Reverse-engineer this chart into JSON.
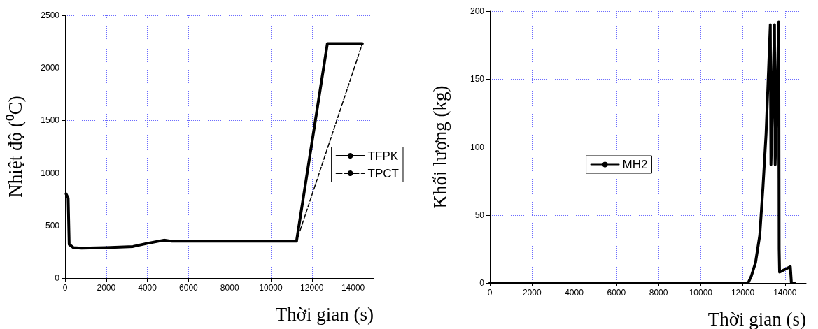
{
  "chart_data": [
    {
      "type": "line",
      "xlabel": "Thời gian (s)",
      "ylabel": "Nhiệt độ (⁰C)",
      "xlim": [
        0,
        15000
      ],
      "xticks": [
        0,
        2000,
        4000,
        6000,
        8000,
        10000,
        12000,
        14000
      ],
      "ylim": [
        0,
        2500
      ],
      "yticks": [
        0,
        500,
        1000,
        1500,
        2000,
        2500
      ],
      "grid": true,
      "legend": "right",
      "marker": "none",
      "series": [
        {
          "name": "TFPK",
          "color": "#000000",
          "line_style": "solid",
          "x": [
            50,
            150,
            200,
            400,
            800,
            2000,
            3300,
            4000,
            4800,
            5200,
            11250,
            12750,
            14450
          ],
          "values": [
            800,
            760,
            320,
            290,
            285,
            290,
            300,
            330,
            360,
            350,
            350,
            2230,
            2230
          ]
        },
        {
          "name": "TPCT",
          "color": "#000000",
          "line_style": "dashed",
          "x": [
            50,
            150,
            200,
            400,
            800,
            2000,
            3300,
            4000,
            4800,
            5200,
            11250,
            14450
          ],
          "values": [
            790,
            750,
            330,
            290,
            285,
            290,
            300,
            330,
            360,
            350,
            350,
            2230
          ]
        }
      ]
    },
    {
      "type": "line",
      "xlabel": "Thời gian (s)",
      "ylabel": "Khối lượng (kg)",
      "xlim": [
        0,
        15000
      ],
      "xticks": [
        0,
        2000,
        4000,
        6000,
        8000,
        10000,
        12000,
        14000
      ],
      "ylim": [
        0,
        200
      ],
      "yticks": [
        0,
        50,
        100,
        150,
        200
      ],
      "grid": true,
      "legend": "center",
      "marker": "none",
      "series": [
        {
          "name": "MH2",
          "color": "#000000",
          "line_style": "solid",
          "x": [
            0,
            12250,
            12400,
            12600,
            12800,
            12950,
            13100,
            13200,
            13300,
            13330,
            13500,
            13530,
            13700,
            13720,
            13740,
            14250,
            14300,
            14450
          ],
          "values": [
            0,
            0,
            5,
            15,
            35,
            70,
            110,
            150,
            190,
            87,
            190,
            87,
            192,
            25,
            8,
            12,
            0,
            0
          ]
        }
      ]
    }
  ]
}
